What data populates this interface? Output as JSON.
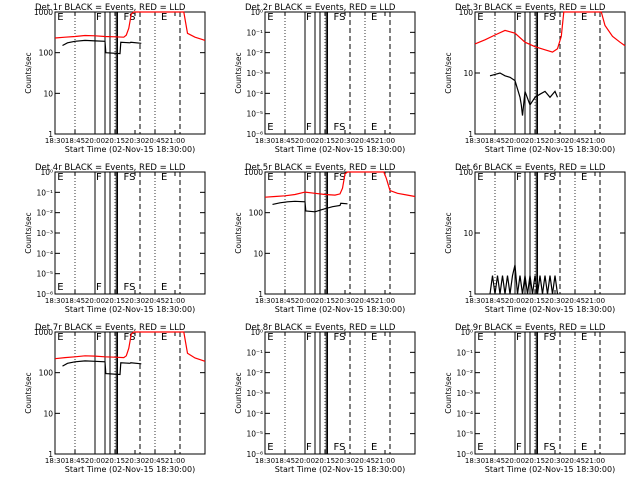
{
  "figure": {
    "x_ticks": [
      "18:30",
      "18:45",
      "20:00",
      "20:15",
      "20:30",
      "20:45",
      "21:00"
    ],
    "x_label": "Start Time (02-Nov-15 18:30:00)",
    "y_label": "Counts/sec",
    "event_labels": [
      "E",
      "F",
      "FS",
      "E"
    ]
  },
  "chart_data": [
    {
      "type": "line",
      "title": "Det 1r BLACK = Events, RED = LLD",
      "ylabel": "Counts/sec",
      "xlabel": "Start Time (02-Nov-15 18:30:00)",
      "yscale": "log",
      "ylim": [
        1,
        1000
      ],
      "y_ticks": [
        "1",
        "10",
        "100",
        "1000"
      ],
      "x_ticks": [
        "18:30",
        "18:45",
        "20:00",
        "20:15",
        "20:30",
        "20:45",
        "21:00"
      ],
      "series": [
        {
          "name": "LLD",
          "color": "#ff0000",
          "x": [
            0,
            4,
            8,
            12,
            16,
            20,
            24,
            27.5,
            28.5,
            29.5,
            30.5,
            31.5,
            32.5,
            50.5,
            51.5,
            53,
            56,
            59,
            60
          ],
          "y": [
            230,
            240,
            250,
            265,
            260,
            250,
            245,
            240,
            270,
            400,
            900,
            1000,
            1000,
            1000,
            1000,
            300,
            240,
            210,
            200
          ]
        },
        {
          "name": "Events",
          "color": "#000000",
          "x": [
            3,
            5,
            8,
            12,
            16,
            20,
            20.3,
            26,
            26.3,
            30,
            30.3,
            34.5
          ],
          "y": [
            150,
            175,
            190,
            200,
            195,
            190,
            100,
            95,
            180,
            175,
            180,
            170
          ]
        }
      ]
    },
    {
      "type": "line",
      "title": "Det 2r BLACK = Events, RED = LLD",
      "ylabel": "Counts/sec",
      "xlabel": "Start Time (02-Nov-15 18:30:00)",
      "yscale": "log",
      "ylim": [
        1e-06,
        1
      ],
      "y_ticks": [
        "10⁰",
        "10⁻¹",
        "10⁻²",
        "10⁻³",
        "10⁻⁴",
        "10⁻⁵",
        "10⁻⁶"
      ],
      "x_ticks": [
        "18:30",
        "18:45",
        "20:00",
        "20:15",
        "20:30",
        "20:45",
        "21:00"
      ],
      "series": []
    },
    {
      "type": "line",
      "title": "Det 3r BLACK = Events, RED = LLD",
      "ylabel": "Counts/sec",
      "xlabel": "Start Time (02-Nov-15 18:30:00)",
      "yscale": "log",
      "ylim": [
        1,
        100
      ],
      "y_ticks": [
        "1",
        "10",
        "100"
      ],
      "x_ticks": [
        "18:30",
        "18:45",
        "20:00",
        "20:15",
        "20:30",
        "20:45",
        "21:00"
      ],
      "series": [
        {
          "name": "LLD",
          "color": "#ff0000",
          "x": [
            0,
            4,
            8,
            12,
            16,
            20,
            24,
            28,
            31,
            33,
            34.5,
            35.5,
            50.5,
            52,
            55,
            58,
            60
          ],
          "y": [
            30,
            35,
            42,
            50,
            45,
            32,
            27,
            24,
            22,
            25,
            40,
            100,
            100,
            60,
            40,
            32,
            28
          ]
        },
        {
          "name": "Events",
          "color": "#000000",
          "x": [
            6,
            8,
            10,
            12,
            14,
            16,
            18,
            18.5,
            19,
            20,
            22,
            24,
            26,
            28,
            30,
            32,
            33
          ],
          "y": [
            9,
            9.5,
            10,
            9,
            8.5,
            7.5,
            4,
            3,
            2,
            5,
            3,
            4,
            4.5,
            5,
            4,
            5,
            4
          ]
        }
      ]
    },
    {
      "type": "line",
      "title": "Det 4r BLACK = Events, RED = LLD",
      "ylabel": "Counts/sec",
      "xlabel": "Start Time (02-Nov-15 18:30:00)",
      "yscale": "log",
      "ylim": [
        1e-06,
        1
      ],
      "y_ticks": [
        "10⁰",
        "10⁻¹",
        "10⁻²",
        "10⁻³",
        "10⁻⁴",
        "10⁻⁵",
        "10⁻⁶"
      ],
      "x_ticks": [
        "18:30",
        "18:45",
        "20:00",
        "20:15",
        "20:30",
        "20:45",
        "21:00"
      ],
      "series": []
    },
    {
      "type": "line",
      "title": "Det 5r BLACK = Events, RED = LLD",
      "ylabel": "Counts/sec",
      "xlabel": "Start Time (02-Nov-15 18:30:00)",
      "yscale": "log",
      "ylim": [
        1,
        1000
      ],
      "y_ticks": [
        "1",
        "10",
        "100",
        "1000"
      ],
      "x_ticks": [
        "18:30",
        "18:45",
        "20:00",
        "20:15",
        "20:30",
        "20:45",
        "21:00"
      ],
      "series": [
        {
          "name": "LLD",
          "color": "#ff0000",
          "x": [
            0,
            4,
            8,
            12,
            16,
            20,
            24,
            28,
            30,
            31,
            32,
            33,
            33.5,
            47.5,
            48.5,
            50,
            53,
            57,
            60
          ],
          "y": [
            240,
            250,
            260,
            280,
            320,
            300,
            280,
            270,
            290,
            400,
            900,
            1000,
            1000,
            1000,
            700,
            350,
            300,
            270,
            250
          ]
        },
        {
          "name": "Events",
          "color": "#000000",
          "x": [
            3,
            6,
            9,
            12,
            16,
            16.3,
            20,
            23,
            27,
            30,
            30.3,
            33
          ],
          "y": [
            160,
            175,
            185,
            190,
            185,
            110,
            105,
            120,
            140,
            150,
            170,
            165
          ]
        }
      ]
    },
    {
      "type": "line",
      "title": "Det 6r BLACK = Events, RED = LLD",
      "ylabel": "Counts/sec",
      "xlabel": "Start Time (02-Nov-15 18:30:00)",
      "yscale": "log",
      "ylim": [
        1,
        100
      ],
      "y_ticks": [
        "1",
        "10",
        "100"
      ],
      "x_ticks": [
        "18:30",
        "18:45",
        "20:00",
        "20:15",
        "20:30",
        "20:45",
        "21:00"
      ],
      "series": [
        {
          "name": "Events",
          "color": "#000000",
          "x": [
            6,
            7,
            8,
            9,
            10,
            11,
            12,
            13,
            14,
            15,
            16,
            17,
            18,
            19,
            20,
            21,
            22,
            23,
            24,
            25,
            26,
            27,
            28,
            29,
            30,
            31,
            32,
            33
          ],
          "y": [
            1,
            2,
            1,
            2,
            1,
            2,
            1,
            2,
            1,
            2,
            3,
            1,
            2,
            1,
            2,
            1,
            2,
            1,
            2,
            1,
            2,
            1,
            2,
            1,
            2,
            1,
            2,
            1
          ]
        }
      ]
    },
    {
      "type": "line",
      "title": "Det 7r BLACK = Events, RED = LLD",
      "ylabel": "Counts/sec",
      "xlabel": "Start Time (02-Nov-15 18:30:00)",
      "yscale": "log",
      "ylim": [
        1,
        1000
      ],
      "y_ticks": [
        "1",
        "10",
        "100",
        "1000"
      ],
      "x_ticks": [
        "18:30",
        "18:45",
        "20:00",
        "20:15",
        "20:30",
        "20:45",
        "21:00"
      ],
      "series": [
        {
          "name": "LLD",
          "color": "#ff0000",
          "x": [
            0,
            4,
            8,
            12,
            16,
            20,
            24,
            27.5,
            28.5,
            29.5,
            30.5,
            31.5,
            32.5,
            50.5,
            51.5,
            53,
            56,
            59,
            60
          ],
          "y": [
            220,
            235,
            245,
            260,
            255,
            245,
            240,
            235,
            260,
            400,
            900,
            1000,
            1000,
            1000,
            1000,
            300,
            230,
            200,
            190
          ]
        },
        {
          "name": "Events",
          "color": "#000000",
          "x": [
            3,
            5,
            8,
            12,
            16,
            20,
            20.3,
            26,
            26.3,
            30,
            30.3,
            34.5
          ],
          "y": [
            145,
            170,
            185,
            195,
            190,
            185,
            95,
            90,
            175,
            170,
            175,
            165
          ]
        }
      ]
    },
    {
      "type": "line",
      "title": "Det 8r BLACK = Events, RED = LLD",
      "ylabel": "Counts/sec",
      "xlabel": "Start Time (02-Nov-15 18:30:00)",
      "yscale": "log",
      "ylim": [
        1e-06,
        1
      ],
      "y_ticks": [
        "10⁰",
        "10⁻¹",
        "10⁻²",
        "10⁻³",
        "10⁻⁴",
        "10⁻⁵",
        "10⁻⁶"
      ],
      "x_ticks": [
        "18:30",
        "18:45",
        "20:00",
        "20:15",
        "20:30",
        "20:45",
        "21:00"
      ],
      "series": []
    },
    {
      "type": "line",
      "title": "Det 9r BLACK = Events, RED = LLD",
      "ylabel": "Counts/sec",
      "xlabel": "Start Time (02-Nov-15 18:30:00)",
      "yscale": "log",
      "ylim": [
        1e-06,
        1
      ],
      "y_ticks": [
        "10⁰",
        "10⁻¹",
        "10⁻²",
        "10⁻³",
        "10⁻⁴",
        "10⁻⁵",
        "10⁻⁶"
      ],
      "x_ticks": [
        "18:30",
        "18:45",
        "20:00",
        "20:15",
        "20:30",
        "20:45",
        "21:00"
      ],
      "series": []
    }
  ]
}
